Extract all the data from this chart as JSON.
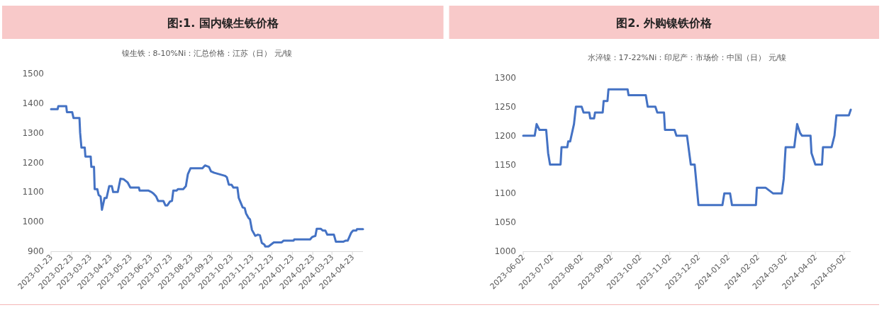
{
  "chart_data": [
    {
      "type": "line",
      "title": "图:1. 国内镍生铁价格",
      "subtitle": "镍生铁：8-10%Ni：汇总价格：江苏（日） 元/镍",
      "line_style": "solid",
      "grid": false,
      "x": [
        "2023-01-23",
        "2023-02-02",
        "2023-02-03",
        "2023-02-15",
        "2023-02-16",
        "2023-02-24",
        "2023-02-25",
        "2023-02-26",
        "2023-03-07",
        "2023-03-08",
        "2023-03-10",
        "2023-03-15",
        "2023-03-16",
        "2023-03-24",
        "2023-03-25",
        "2023-03-29",
        "2023-03-30",
        "2023-04-03",
        "2023-04-05",
        "2023-04-08",
        "2023-04-10",
        "2023-04-14",
        "2023-04-17",
        "2023-04-21",
        "2023-04-25",
        "2023-04-27",
        "2023-05-04",
        "2023-05-08",
        "2023-05-13",
        "2023-05-19",
        "2023-05-23",
        "2023-06-05",
        "2023-06-06",
        "2023-06-19",
        "2023-06-24",
        "2023-06-27",
        "2023-07-01",
        "2023-07-04",
        "2023-07-12",
        "2023-07-15",
        "2023-07-18",
        "2023-07-22",
        "2023-07-25",
        "2023-07-27",
        "2023-08-01",
        "2023-08-03",
        "2023-08-11",
        "2023-08-15",
        "2023-08-18",
        "2023-08-22",
        "2023-09-09",
        "2023-09-13",
        "2023-09-19",
        "2023-09-22",
        "2023-09-27",
        "2023-10-13",
        "2023-10-16",
        "2023-10-19",
        "2023-10-23",
        "2023-10-26",
        "2023-11-01",
        "2023-11-03",
        "2023-11-09",
        "2023-11-12",
        "2023-11-14",
        "2023-11-18",
        "2023-11-20",
        "2023-11-23",
        "2023-11-28",
        "2023-12-02",
        "2023-12-05",
        "2023-12-08",
        "2023-12-12",
        "2023-12-13",
        "2023-12-18",
        "2023-12-25",
        "2023-12-26",
        "2024-01-07",
        "2024-01-10",
        "2024-01-25",
        "2024-01-26",
        "2024-02-19",
        "2024-02-22",
        "2024-02-27",
        "2024-02-29",
        "2024-03-06",
        "2024-03-09",
        "2024-03-13",
        "2024-03-16",
        "2024-03-26",
        "2024-03-29",
        "2024-04-09",
        "2024-04-13",
        "2024-04-16",
        "2024-04-21",
        "2024-04-24",
        "2024-04-29",
        "2024-04-30",
        "2024-05-09"
      ],
      "series": [
        {
          "color": "#4472c4",
          "values": [
            1380,
            1380,
            1390,
            1390,
            1370,
            1370,
            1360,
            1350,
            1350,
            1300,
            1250,
            1250,
            1220,
            1220,
            1185,
            1185,
            1110,
            1110,
            1090,
            1085,
            1040,
            1080,
            1080,
            1120,
            1120,
            1100,
            1100,
            1145,
            1143,
            1132,
            1115,
            1115,
            1105,
            1105,
            1100,
            1095,
            1085,
            1070,
            1070,
            1055,
            1055,
            1068,
            1070,
            1105,
            1105,
            1110,
            1110,
            1120,
            1160,
            1180,
            1180,
            1190,
            1185,
            1170,
            1165,
            1155,
            1150,
            1125,
            1125,
            1115,
            1115,
            1080,
            1048,
            1046,
            1028,
            1012,
            1008,
            972,
            952,
            956,
            954,
            928,
            922,
            916,
            916,
            928,
            930,
            930,
            936,
            936,
            940,
            940,
            948,
            952,
            976,
            976,
            970,
            970,
            956,
            956,
            932,
            932,
            936,
            936,
            962,
            970,
            970,
            975,
            975
          ]
        }
      ],
      "xlim": [
        "2023-01-23",
        "2024-05-09"
      ],
      "xticks": [
        "2023-01-23",
        "2023-02-23",
        "2023-03-23",
        "2023-04-23",
        "2023-05-23",
        "2023-06-23",
        "2023-07-23",
        "2023-08-23",
        "2023-09-23",
        "2023-10-23",
        "2023-11-23",
        "2023-12-23",
        "2024-01-23",
        "2024-02-23",
        "2024-03-23",
        "2024-04-23"
      ],
      "ylim": [
        900,
        1500
      ],
      "yticks": [
        900,
        1000,
        1100,
        1200,
        1300,
        1400,
        1500
      ]
    },
    {
      "type": "line",
      "title": "图2. 外购镍铁价格",
      "subtitle": "水淬镍：17-22%Ni：印尼产：市场价：中国（日） 元/镍",
      "line_style": "solid",
      "grid": false,
      "x": [
        "2023-06-02",
        "2023-06-14",
        "2023-06-16",
        "2023-06-19",
        "2023-06-26",
        "2023-06-28",
        "2023-06-30",
        "2023-07-11",
        "2023-07-12",
        "2023-07-18",
        "2023-07-19",
        "2023-07-21",
        "2023-07-25",
        "2023-07-27",
        "2023-08-02",
        "2023-08-04",
        "2023-08-10",
        "2023-08-11",
        "2023-08-15",
        "2023-08-16",
        "2023-08-24",
        "2023-08-25",
        "2023-08-29",
        "2023-08-30",
        "2023-09-19",
        "2023-09-20",
        "2023-10-08",
        "2023-10-10",
        "2023-10-18",
        "2023-10-20",
        "2023-10-27",
        "2023-10-28",
        "2023-11-07",
        "2023-11-09",
        "2023-11-20",
        "2023-11-24",
        "2023-11-28",
        "2023-12-02",
        "2023-12-27",
        "2023-12-29",
        "2024-01-04",
        "2024-01-06",
        "2024-01-31",
        "2024-02-01",
        "2024-02-10",
        "2024-02-18",
        "2024-02-27",
        "2024-02-29",
        "2024-03-02",
        "2024-03-11",
        "2024-03-14",
        "2024-03-17",
        "2024-03-19",
        "2024-03-28",
        "2024-03-29",
        "2024-04-02",
        "2024-04-09",
        "2024-04-10",
        "2024-04-19",
        "2024-04-22",
        "2024-04-24",
        "2024-05-07",
        "2024-05-09"
      ],
      "series": [
        {
          "color": "#4472c4",
          "values": [
            1200,
            1200,
            1220,
            1210,
            1210,
            1170,
            1150,
            1150,
            1180,
            1180,
            1190,
            1190,
            1220,
            1250,
            1250,
            1240,
            1240,
            1230,
            1230,
            1240,
            1240,
            1260,
            1260,
            1280,
            1280,
            1270,
            1270,
            1250,
            1250,
            1240,
            1240,
            1210,
            1210,
            1200,
            1200,
            1150,
            1150,
            1080,
            1080,
            1100,
            1100,
            1080,
            1080,
            1110,
            1110,
            1100,
            1100,
            1125,
            1180,
            1180,
            1220,
            1205,
            1200,
            1200,
            1170,
            1150,
            1150,
            1180,
            1180,
            1200,
            1235,
            1235,
            1245
          ]
        }
      ],
      "xlim": [
        "2023-06-02",
        "2024-05-09"
      ],
      "xticks": [
        "2023-06-02",
        "2023-07-02",
        "2023-08-02",
        "2023-09-02",
        "2023-10-02",
        "2023-11-02",
        "2023-12-02",
        "2024-01-02",
        "2024-02-02",
        "2024-03-02",
        "2024-04-02",
        "2024-05-02"
      ],
      "ylim": [
        1000,
        1300
      ],
      "yticks": [
        1000,
        1050,
        1100,
        1150,
        1200,
        1250,
        1300
      ]
    }
  ]
}
